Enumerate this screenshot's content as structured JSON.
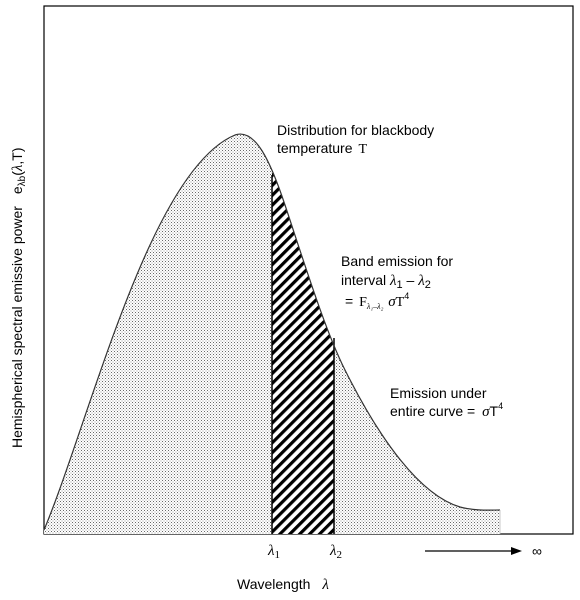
{
  "curve_label": {
    "line1": "Distribution for blackbody",
    "line2_text": "temperature",
    "line2_symbol": "T"
  },
  "band_label": {
    "line1": "Band emission for",
    "line2_prefix": "interval",
    "line2_l1": "λ",
    "line2_l1_sub": "1",
    "line2_dash": "–",
    "line2_l2": "λ",
    "line2_l2_sub": "2",
    "line3_eq": "=",
    "line3_F": "F",
    "line3_F_sub": "λ₁–λ₂",
    "line3_sigma": "σ",
    "line3_T": "T",
    "line3_exp": "4"
  },
  "total_label": {
    "line1": "Emission under",
    "line2_text": "entire curve =",
    "line2_sigma": "σ",
    "line2_T": "T",
    "line2_exp": "4"
  },
  "y_axis_label": {
    "text": "Hemispherical spectral emissive power",
    "e": "e",
    "sub": "λb",
    "args_open": "(",
    "lambda": "λ",
    "args_rest": ",T)"
  },
  "x_axis_label": {
    "text": "Wavelength",
    "symbol": "λ"
  },
  "ticks": {
    "l1": "λ",
    "l1_sub": "1",
    "l2": "λ",
    "l2_sub": "2"
  },
  "infinity": "∞"
}
